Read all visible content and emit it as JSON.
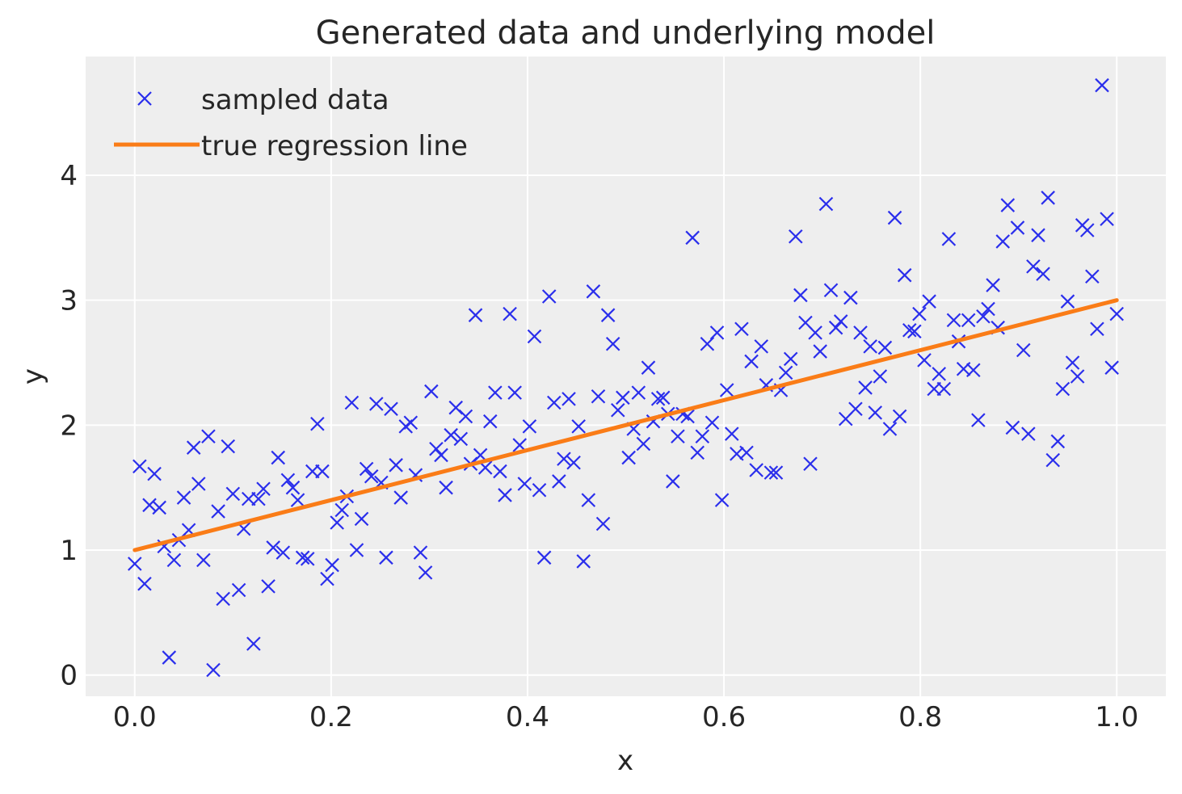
{
  "chart_data": {
    "type": "scatter",
    "title": "Generated data and underlying model",
    "xlabel": "x",
    "ylabel": "y",
    "xlim": [
      -0.05,
      1.05
    ],
    "ylim": [
      -0.17,
      4.95
    ],
    "xticks": [
      0.0,
      0.2,
      0.4,
      0.6,
      0.8,
      1.0
    ],
    "xtick_labels": [
      "0.0",
      "0.2",
      "0.4",
      "0.6",
      "0.8",
      "1.0"
    ],
    "yticks": [
      0,
      1,
      2,
      3,
      4
    ],
    "ytick_labels": [
      "0",
      "1",
      "2",
      "3",
      "4"
    ],
    "grid": true,
    "legend_position": "top-left",
    "colors": {
      "background": "#eeeeee",
      "grid": "#ffffff",
      "scatter": "#2a2eec",
      "line": "#fa7c17"
    },
    "series": [
      {
        "name": "sampled data",
        "type": "scatter",
        "marker": "x",
        "x": [
          0.0,
          0.005,
          0.01,
          0.015,
          0.02,
          0.025,
          0.03,
          0.035,
          0.04,
          0.045,
          0.05,
          0.055,
          0.06,
          0.065,
          0.07,
          0.075,
          0.08,
          0.085,
          0.09,
          0.095,
          0.1,
          0.106,
          0.111,
          0.116,
          0.121,
          0.126,
          0.131,
          0.136,
          0.141,
          0.146,
          0.151,
          0.156,
          0.161,
          0.166,
          0.171,
          0.176,
          0.181,
          0.186,
          0.191,
          0.196,
          0.201,
          0.206,
          0.211,
          0.216,
          0.221,
          0.226,
          0.231,
          0.236,
          0.241,
          0.246,
          0.251,
          0.256,
          0.261,
          0.266,
          0.271,
          0.276,
          0.281,
          0.286,
          0.291,
          0.296,
          0.302,
          0.307,
          0.312,
          0.317,
          0.322,
          0.327,
          0.332,
          0.337,
          0.342,
          0.347,
          0.352,
          0.357,
          0.362,
          0.367,
          0.372,
          0.377,
          0.382,
          0.387,
          0.392,
          0.397,
          0.402,
          0.407,
          0.412,
          0.417,
          0.422,
          0.427,
          0.432,
          0.437,
          0.442,
          0.447,
          0.452,
          0.457,
          0.462,
          0.467,
          0.472,
          0.477,
          0.482,
          0.487,
          0.492,
          0.497,
          0.503,
          0.508,
          0.513,
          0.518,
          0.523,
          0.528,
          0.533,
          0.538,
          0.543,
          0.548,
          0.553,
          0.558,
          0.563,
          0.568,
          0.573,
          0.578,
          0.583,
          0.588,
          0.593,
          0.598,
          0.603,
          0.608,
          0.613,
          0.618,
          0.623,
          0.628,
          0.633,
          0.638,
          0.643,
          0.648,
          0.653,
          0.658,
          0.663,
          0.668,
          0.673,
          0.678,
          0.683,
          0.688,
          0.693,
          0.698,
          0.704,
          0.709,
          0.714,
          0.719,
          0.724,
          0.729,
          0.734,
          0.739,
          0.744,
          0.749,
          0.754,
          0.759,
          0.764,
          0.769,
          0.774,
          0.779,
          0.784,
          0.789,
          0.794,
          0.799,
          0.804,
          0.809,
          0.814,
          0.819,
          0.824,
          0.829,
          0.834,
          0.839,
          0.844,
          0.849,
          0.854,
          0.859,
          0.864,
          0.869,
          0.874,
          0.879,
          0.884,
          0.889,
          0.894,
          0.899,
          0.905,
          0.91,
          0.915,
          0.92,
          0.925,
          0.93,
          0.935,
          0.94,
          0.945,
          0.95,
          0.955,
          0.96,
          0.965,
          0.97,
          0.975,
          0.98,
          0.985,
          0.99,
          0.995,
          1.0
        ],
        "y": [
          0.89,
          1.67,
          0.73,
          1.36,
          1.61,
          1.34,
          1.03,
          0.14,
          0.92,
          1.08,
          1.42,
          1.16,
          1.82,
          1.53,
          0.92,
          1.91,
          0.04,
          1.31,
          0.61,
          1.83,
          1.45,
          0.68,
          1.17,
          1.41,
          0.25,
          1.41,
          1.49,
          0.71,
          1.02,
          1.74,
          0.98,
          1.56,
          1.5,
          1.4,
          0.94,
          0.93,
          1.63,
          2.01,
          1.63,
          0.77,
          0.88,
          1.22,
          1.32,
          1.43,
          2.18,
          1.0,
          1.25,
          1.65,
          1.59,
          2.17,
          1.54,
          0.94,
          2.13,
          1.68,
          1.42,
          1.99,
          2.02,
          1.6,
          0.98,
          0.82,
          2.27,
          1.81,
          1.76,
          1.5,
          1.92,
          2.14,
          1.89,
          2.07,
          1.69,
          2.88,
          1.76,
          1.66,
          2.03,
          2.26,
          1.63,
          1.44,
          2.89,
          2.26,
          1.84,
          1.53,
          1.99,
          2.71,
          1.48,
          0.94,
          3.03,
          2.18,
          1.55,
          1.73,
          2.21,
          1.7,
          1.99,
          0.91,
          1.4,
          3.07,
          2.23,
          1.21,
          2.88,
          2.65,
          2.12,
          2.22,
          1.74,
          1.97,
          2.26,
          1.85,
          2.46,
          2.03,
          2.21,
          2.22,
          2.09,
          1.55,
          1.91,
          2.09,
          2.07,
          3.5,
          1.78,
          1.91,
          2.65,
          2.02,
          2.74,
          1.4,
          2.28,
          1.93,
          1.77,
          2.77,
          1.78,
          2.51,
          1.64,
          2.63,
          2.32,
          1.62,
          1.62,
          2.28,
          2.42,
          2.53,
          3.51,
          3.04,
          2.82,
          1.69,
          2.74,
          2.59,
          3.77,
          3.08,
          2.78,
          2.83,
          2.05,
          3.02,
          2.13,
          2.74,
          2.3,
          2.63,
          2.1,
          2.39,
          2.62,
          1.97,
          3.66,
          2.07,
          3.2,
          2.76,
          2.75,
          2.89,
          2.52,
          2.99,
          2.29,
          2.41,
          2.29,
          3.49,
          2.84,
          2.67,
          2.45,
          2.84,
          2.44,
          2.04,
          2.87,
          2.93,
          3.12,
          2.78,
          3.47,
          3.76,
          1.98,
          3.58,
          2.6,
          1.93,
          3.27,
          3.52,
          3.21,
          3.82,
          1.72,
          1.87,
          2.29,
          2.99,
          2.5,
          2.39,
          3.6,
          3.56,
          3.19,
          2.77,
          4.72,
          3.65,
          2.46,
          2.89
        ]
      },
      {
        "name": "true regression line",
        "type": "line",
        "x": [
          0.0,
          1.0
        ],
        "y": [
          1.0,
          3.0
        ]
      }
    ]
  }
}
